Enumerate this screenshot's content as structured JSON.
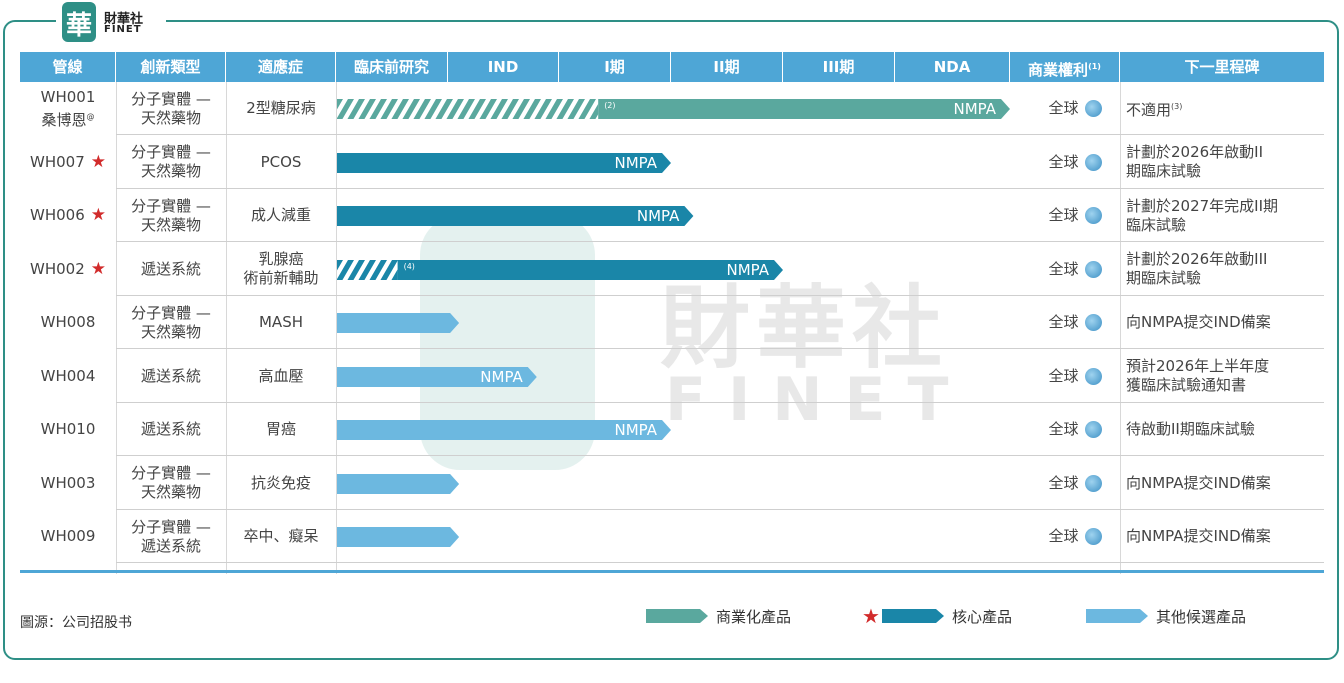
{
  "logo": {
    "cn": "財華社",
    "en": "FINET",
    "mark": "華"
  },
  "headers": {
    "pipeline": "管線",
    "category": "創新類型",
    "indication": "適應症",
    "preclinical": "臨床前研究",
    "ind": "IND",
    "phase1": "I期",
    "phase2": "II期",
    "phase3": "III期",
    "nda": "NDA",
    "rights": "商業權利",
    "rights_note": "(1)",
    "next": "下一里程碑"
  },
  "rows": [
    {
      "id": "WH001",
      "sub": "桑博恩",
      "sub_mark": "@",
      "star": false,
      "category": [
        "分子實體 —",
        "天然藥物"
      ],
      "indication": [
        "2型糖尿病"
      ],
      "bar_type": "commercial",
      "stage_end": 6.0,
      "hatch_end": 2.35,
      "label": "NMPA",
      "note": "(2)",
      "rights": "全球",
      "next": [
        "不適用"
      ],
      "next_note": "(3)"
    },
    {
      "id": "WH007",
      "star": true,
      "category": [
        "分子實體 —",
        "天然藥物"
      ],
      "indication": [
        "PCOS"
      ],
      "bar_type": "core",
      "stage_end": 3.0,
      "label": "NMPA",
      "rights": "全球",
      "next": [
        "計劃於2026年啟動II",
        "期臨床試驗"
      ]
    },
    {
      "id": "WH006",
      "star": true,
      "category": [
        "分子實體 —",
        "天然藥物"
      ],
      "indication": [
        "成人減重"
      ],
      "bar_type": "core",
      "stage_end": 3.2,
      "label": "NMPA",
      "rights": "全球",
      "next": [
        "計劃於2027年完成II期",
        "臨床試驗"
      ]
    },
    {
      "id": "WH002",
      "star": true,
      "category": [
        "遞送系統"
      ],
      "indication": [
        "乳腺癌",
        "術前新輔助"
      ],
      "bar_type": "core",
      "stage_end": 4.0,
      "hatch_end": 0.55,
      "label": "NMPA",
      "note": "(4)",
      "rights": "全球",
      "next": [
        "計劃於2026年啟動III",
        "期臨床試驗"
      ]
    },
    {
      "id": "WH008",
      "star": false,
      "category": [
        "分子實體 —",
        "天然藥物"
      ],
      "indication": [
        "MASH"
      ],
      "bar_type": "other",
      "stage_end": 1.1,
      "label": "",
      "rights": "全球",
      "next": [
        "向NMPA提交IND備案"
      ]
    },
    {
      "id": "WH004",
      "star": false,
      "category": [
        "遞送系統"
      ],
      "indication": [
        "高血壓"
      ],
      "bar_type": "other",
      "stage_end": 1.8,
      "label": "NMPA",
      "rights": "全球",
      "next": [
        "預計2026年上半年度",
        "獲臨床試驗通知書"
      ]
    },
    {
      "id": "WH010",
      "star": false,
      "category": [
        "遞送系統"
      ],
      "indication": [
        "胃癌"
      ],
      "bar_type": "other",
      "stage_end": 3.0,
      "label": "NMPA",
      "rights": "全球",
      "next": [
        "待啟動II期臨床試驗"
      ]
    },
    {
      "id": "WH003",
      "star": false,
      "category": [
        "分子實體 —",
        "天然藥物"
      ],
      "indication": [
        "抗炎免疫"
      ],
      "bar_type": "other",
      "stage_end": 1.1,
      "label": "",
      "rights": "全球",
      "next": [
        "向NMPA提交IND備案"
      ]
    },
    {
      "id": "WH009",
      "star": false,
      "category": [
        "分子實體 —",
        "遞送系統"
      ],
      "indication": [
        "卒中、癡呆"
      ],
      "bar_type": "other",
      "stage_end": 1.1,
      "label": "",
      "rights": "全球",
      "next": [
        "向NMPA提交IND備案"
      ]
    }
  ],
  "colors": {
    "commercial": "#5aa89e",
    "core": "#1a86a8",
    "other": "#6cb8e0",
    "header": "#4ea6d6",
    "star": "#d22b2b"
  },
  "icons": {
    "rights": "globe-icon",
    "core_marker": "star-icon"
  },
  "source": "圖源：公司招股书",
  "legend": [
    {
      "type": "commercial",
      "label": "商業化產品"
    },
    {
      "type": "core",
      "label": "核心產品"
    },
    {
      "type": "other",
      "label": "其他候選產品"
    }
  ],
  "watermark": {
    "cn": "財華社",
    "en": "FINET"
  }
}
